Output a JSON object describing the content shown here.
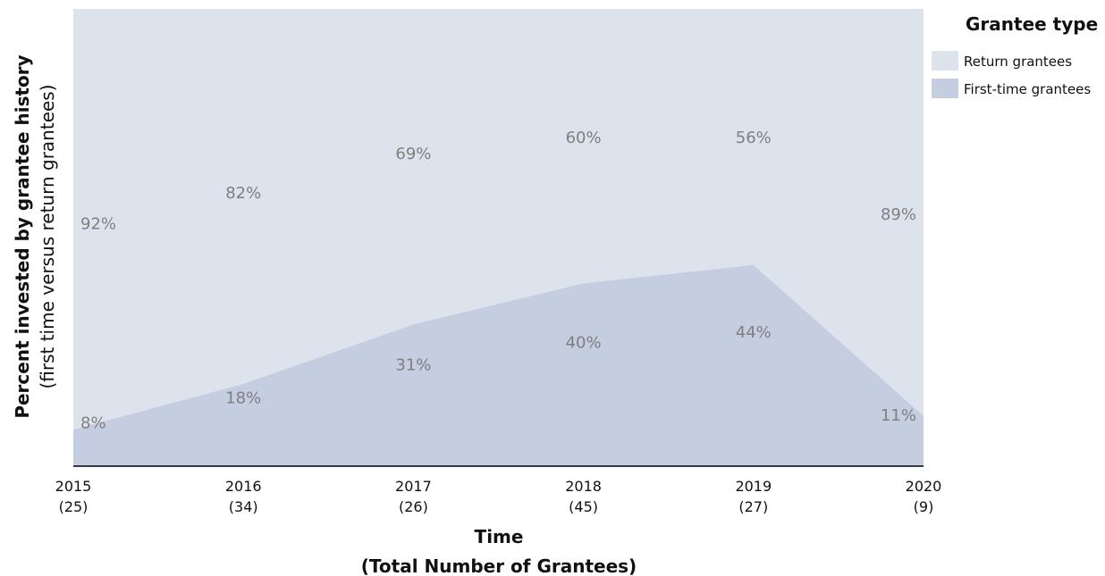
{
  "chart_data": {
    "type": "area",
    "stacked": true,
    "percent": true,
    "x": [
      "2015",
      "2016",
      "2017",
      "2018",
      "2019",
      "2020"
    ],
    "x_counts": [
      "(25)",
      "(34)",
      "(26)",
      "(45)",
      "(27)",
      "(9)"
    ],
    "series": [
      {
        "name": "Return grantees",
        "values": [
          92,
          82,
          69,
          60,
          56,
          89
        ],
        "labels": [
          "92%",
          "82%",
          "69%",
          "60%",
          "56%",
          "89%"
        ],
        "color": "#dde3ed"
      },
      {
        "name": "First-time grantees",
        "values": [
          8,
          18,
          31,
          40,
          44,
          11
        ],
        "labels": [
          "8%",
          "18%",
          "31%",
          "40%",
          "44%",
          "11%"
        ],
        "color": "#c5cde0"
      }
    ],
    "ylim": [
      0,
      100
    ],
    "xlabel": "Time",
    "xlabel_sub": "(Total Number of Grantees)",
    "ylabel": "Percent invested by grantee history",
    "ylabel_sub": "(first time versus return grantees)",
    "legend": {
      "title": "Grantee type",
      "position": "right"
    },
    "grid": false
  }
}
